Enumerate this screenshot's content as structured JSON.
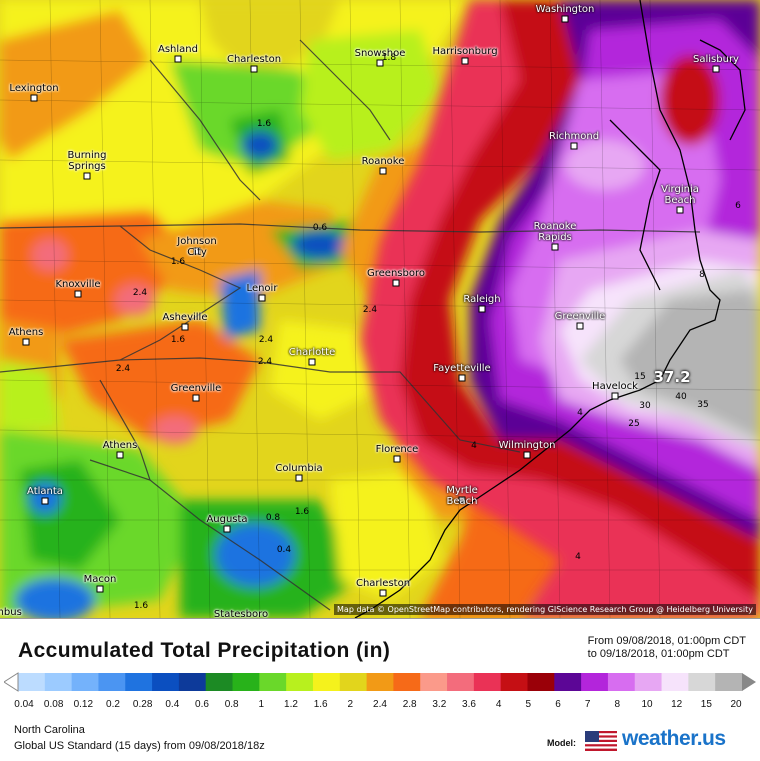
{
  "map": {
    "attribution": "Map data © OpenStreetMap contributors, rendering GIScience Research Group @ Heidelberg University",
    "cities": [
      {
        "name": "Washington",
        "light": true
      },
      {
        "name": "Ashland"
      },
      {
        "name": "Charleston"
      },
      {
        "name": "Snowshoe"
      },
      {
        "name": "Harrisonburg"
      },
      {
        "name": "Salisbury",
        "light": true
      },
      {
        "name": "Lexington"
      },
      {
        "name": "Richmond",
        "light": true
      },
      {
        "name": "Burning Springs"
      },
      {
        "name": "Roanoke"
      },
      {
        "name": "Virginia Beach",
        "light": true
      },
      {
        "name": "Johnson City"
      },
      {
        "name": "Roanoke Rapids",
        "light": true
      },
      {
        "name": "Greensboro"
      },
      {
        "name": "Knoxville"
      },
      {
        "name": "Lenoir"
      },
      {
        "name": "Raleigh",
        "light": true
      },
      {
        "name": "Asheville"
      },
      {
        "name": "Greenville",
        "light": true
      },
      {
        "name": "Athens"
      },
      {
        "name": "Charlotte",
        "light": true
      },
      {
        "name": "Fayetteville",
        "light": true
      },
      {
        "name": "Greenville"
      },
      {
        "name": "Havelock"
      },
      {
        "name": "Athens"
      },
      {
        "name": "Florence"
      },
      {
        "name": "Columbia"
      },
      {
        "name": "Wilmington",
        "light": true
      },
      {
        "name": "Atlanta",
        "light": true
      },
      {
        "name": "Myrtle Beach",
        "light": true
      },
      {
        "name": "Augusta"
      },
      {
        "name": "Macon"
      },
      {
        "name": "Charleston"
      },
      {
        "name": "Statesboro"
      },
      {
        "name": "mbus"
      }
    ],
    "values": [
      "1.8",
      "1.6",
      "0.6",
      "1.6",
      "2.4",
      "1.6",
      "2.4",
      "2.4",
      "2.4",
      "2.4",
      "0.8",
      "1.6",
      "0.4",
      "1.6",
      "4",
      "4",
      "4",
      "6",
      "8",
      "15",
      "30",
      "40",
      "35",
      "25",
      "37.2"
    ]
  },
  "footer": {
    "title": "Accumulated Total Precipitation (in)",
    "from": "From 09/08/2018, 01:00pm CDT",
    "to": "to 09/18/2018, 01:00pm CDT",
    "region": "North Carolina",
    "model_run": "Global US Standard (15 days) from 09/08/2018/18z",
    "model_label": "Model:",
    "brand": "weather.us"
  },
  "legend": {
    "ticks": [
      "0.04",
      "0.08",
      "0.12",
      "0.2",
      "0.28",
      "0.4",
      "0.6",
      "0.8",
      "1",
      "1.2",
      "1.6",
      "2",
      "2.4",
      "2.8",
      "3.2",
      "3.6",
      "4",
      "5",
      "6",
      "7",
      "8",
      "10",
      "12",
      "15",
      "20"
    ],
    "colors": [
      "#bcdcff",
      "#9ccbff",
      "#74b2fb",
      "#4b95f2",
      "#1f73e0",
      "#0b4fc0",
      "#0d3a9a",
      "#1c8a24",
      "#28b21a",
      "#6ad82a",
      "#b8f01e",
      "#f5f21c",
      "#e2d51c",
      "#f29a16",
      "#f66a18",
      "#fb9a8a",
      "#f36c7c",
      "#ea3256",
      "#c50f14",
      "#9a0008",
      "#5c0696",
      "#b325db",
      "#d76df0",
      "#e7a7f3",
      "#f6e3fb",
      "#d7d7d7",
      "#b4b4b4"
    ]
  }
}
